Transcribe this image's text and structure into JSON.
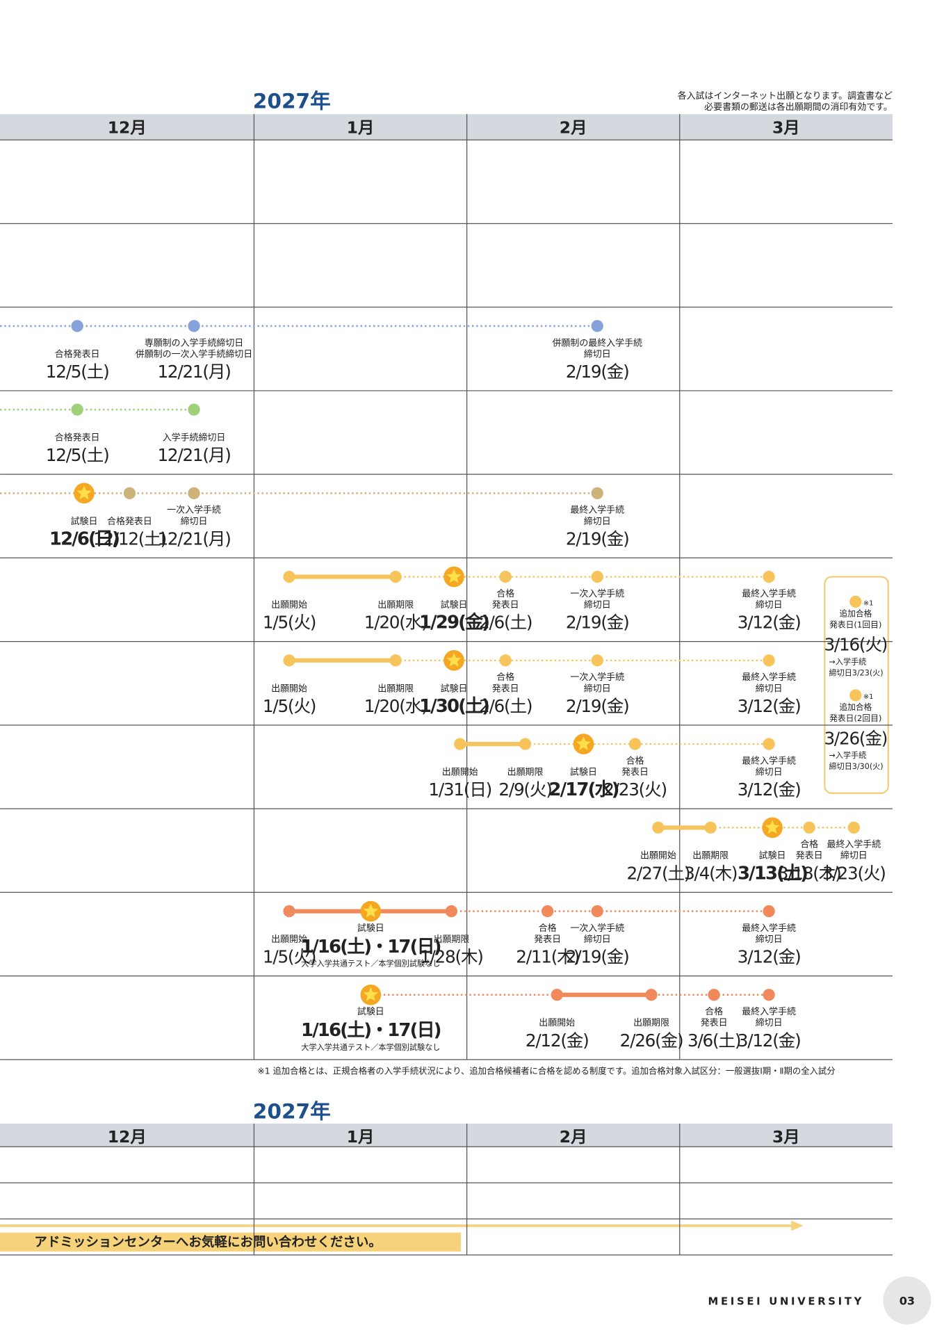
{
  "table1": {
    "year": "2027年",
    "note": [
      "各入試はインターネット出願となります。調査書など",
      "必要書類の郵送は各出願期間の消印有効です。"
    ],
    "months": [
      "12月",
      "1月",
      "2月",
      "3月"
    ],
    "rows": [
      {
        "events": []
      },
      {
        "events": []
      },
      {
        "color": "#86a2da",
        "events": [
          {
            "label": [
              "合格発表日"
            ],
            "date": "12/5(土)"
          },
          {
            "label": [
              "専願制の入学手続締切日",
              "併願制の一次入学手続締切日"
            ],
            "date": "12/21(月)"
          },
          {
            "label": [
              "併願制の最終入学手続",
              "締切日"
            ],
            "date": "2/19(金)"
          }
        ]
      },
      {
        "color": "#9fd07a",
        "events": [
          {
            "label": [
              "合格発表日"
            ],
            "date": "12/5(土)"
          },
          {
            "label": [
              "入学手続締切日"
            ],
            "date": "12/21(月)"
          }
        ]
      },
      {
        "color": "#cdb27a",
        "events": [
          {
            "label": [
              "試験日"
            ],
            "date": "12/6(日)",
            "star": true
          },
          {
            "label": [
              "合格発表日"
            ],
            "date": "12/12(土)"
          },
          {
            "label": [
              "一次入学手続",
              "締切日"
            ],
            "date": "12/21(月)"
          },
          {
            "label": [
              "最終入学手続",
              "締切日"
            ],
            "date": "2/19(金)"
          }
        ]
      },
      {
        "color": "#f7c45c",
        "events": [
          {
            "label": [
              "出願開始"
            ],
            "date": "1/5(火)"
          },
          {
            "label": [
              "出願期限"
            ],
            "date": "1/20(水)"
          },
          {
            "label": [
              "試験日"
            ],
            "date": "1/29(金)",
            "star": true
          },
          {
            "label": [
              "合格",
              "発表日"
            ],
            "date": "2/6(土)"
          },
          {
            "label": [
              "一次入学手続",
              "締切日"
            ],
            "date": "2/19(金)"
          },
          {
            "label": [
              "最終入学手続",
              "締切日"
            ],
            "date": "3/12(金)"
          }
        ]
      },
      {
        "color": "#f7c45c",
        "events": [
          {
            "label": [
              "出願開始"
            ],
            "date": "1/5(火)"
          },
          {
            "label": [
              "出願期限"
            ],
            "date": "1/20(水)"
          },
          {
            "label": [
              "試験日"
            ],
            "date": "1/30(土)",
            "star": true
          },
          {
            "label": [
              "合格",
              "発表日"
            ],
            "date": "2/6(土)"
          },
          {
            "label": [
              "一次入学手続",
              "締切日"
            ],
            "date": "2/19(金)"
          },
          {
            "label": [
              "最終入学手続",
              "締切日"
            ],
            "date": "3/12(金)"
          }
        ]
      },
      {
        "color": "#f7c45c",
        "events": [
          {
            "label": [
              "出願開始"
            ],
            "date": "1/31(日)"
          },
          {
            "label": [
              "出願期限"
            ],
            "date": "2/9(火)"
          },
          {
            "label": [
              "試験日"
            ],
            "date": "2/17(水)",
            "star": true
          },
          {
            "label": [
              "合格",
              "発表日"
            ],
            "date": "2/23(火)"
          },
          {
            "label": [
              "最終入学手続",
              "締切日"
            ],
            "date": "3/12(金)"
          }
        ]
      },
      {
        "color": "#f7c45c",
        "events": [
          {
            "label": [
              "出願開始"
            ],
            "date": "2/27(土)"
          },
          {
            "label": [
              "出願期限"
            ],
            "date": "3/4(木)"
          },
          {
            "label": [
              "試験日"
            ],
            "date": "3/13(土)",
            "star": true
          },
          {
            "label": [
              "合格",
              "発表日"
            ],
            "date": "3/18(木)"
          },
          {
            "label": [
              "最終入学手続",
              "締切日"
            ],
            "date": "3/23(火)"
          }
        ]
      },
      {
        "color": "#f08a5d",
        "events": [
          {
            "label": [
              "出願開始"
            ],
            "date": "1/5(火)"
          },
          {
            "label": [
              "試験日"
            ],
            "date": "1/16(土)・17(日)",
            "star": true,
            "note": "大学入学共通テスト／本学個別試験なし"
          },
          {
            "label": [
              "出願期限"
            ],
            "date": "1/28(木)"
          },
          {
            "label": [
              "合格",
              "発表日"
            ],
            "date": "2/11(木)"
          },
          {
            "label": [
              "一次入学手続",
              "締切日"
            ],
            "date": "2/19(金)"
          },
          {
            "label": [
              "最終入学手続",
              "締切日"
            ],
            "date": "3/12(金)"
          }
        ]
      },
      {
        "color": "#f08a5d",
        "events": [
          {
            "label": [
              "試験日"
            ],
            "date": "1/16(土)・17(日)",
            "star": true,
            "note": "大学入学共通テスト／本学個別試験なし"
          },
          {
            "label": [
              "出願開始"
            ],
            "date": "2/12(金)"
          },
          {
            "label": [
              "出願期限"
            ],
            "date": "2/26(金)"
          },
          {
            "label": [
              "合格",
              "発表日"
            ],
            "date": "3/6(土)"
          },
          {
            "label": [
              "最終入学手続",
              "締切日"
            ],
            "date": "3/12(金)"
          }
        ]
      }
    ],
    "side": [
      {
        "mark": "※1",
        "label": [
          "追加合格",
          "発表日(1回目)"
        ],
        "date": "3/16(火)",
        "after": [
          "→入学手続",
          "締切日3/23(火)"
        ]
      },
      {
        "mark": "※1",
        "label": [
          "追加合格",
          "発表日(2回目)"
        ],
        "date": "3/26(金)",
        "after": [
          "→入学手続",
          "締切日3/30(火)"
        ]
      }
    ]
  },
  "footnote": "※1 追加合格とは、正規合格者の入学手続状況により、追加合格候補者に合格を認める制度です。追加合格対象入試区分：一般選抜Ⅰ期・Ⅱ期の全入試分",
  "table2": {
    "year": "2027年",
    "months": [
      "12月",
      "1月",
      "2月",
      "3月"
    ],
    "banner": "アドミッションセンターへお気軽にお問い合わせください。"
  },
  "footer": {
    "university": "MEISEI UNIVERSITY",
    "page": "03"
  }
}
